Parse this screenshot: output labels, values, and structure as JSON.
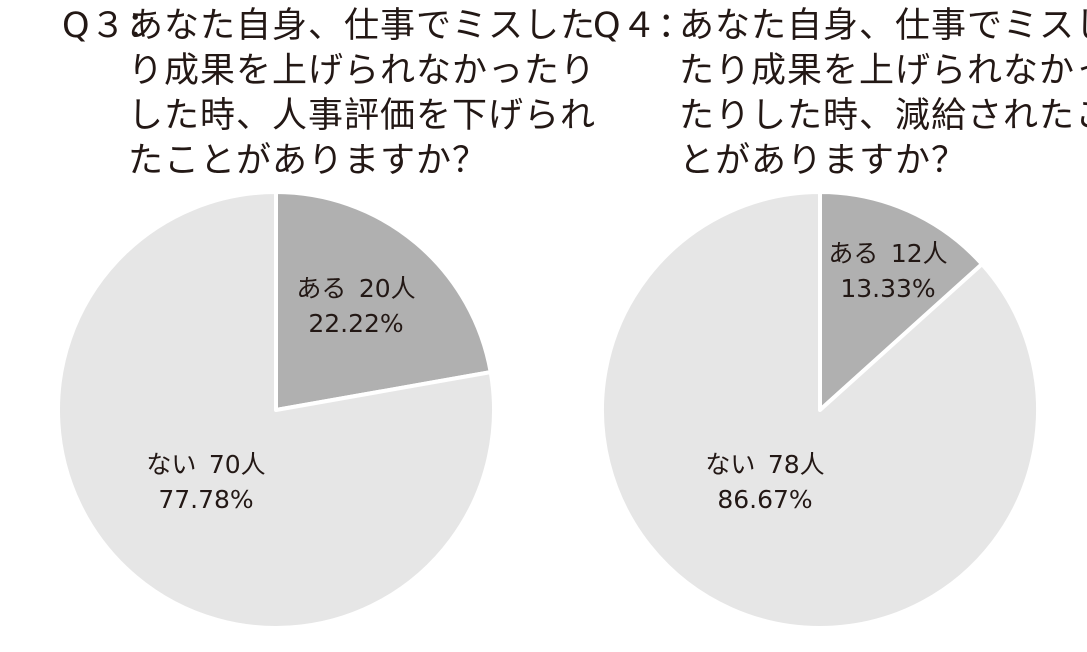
{
  "chart_data": [
    {
      "type": "pie",
      "question_number": "Q３：",
      "title_lines": [
        "あなた自身、仕事でミスした",
        "り成果を上げられなかったり",
        "した時、人事評価を下げられ",
        "たことがありますか？"
      ],
      "slices": [
        {
          "label": "ある",
          "count_text": "20人",
          "count": 20,
          "percent_text": "22.22%",
          "percent": 22.22,
          "color": "#b0b0b0"
        },
        {
          "label": "ない",
          "count_text": "70人",
          "count": 70,
          "percent_text": "77.78%",
          "percent": 77.78,
          "color": "#e6e6e6"
        }
      ]
    },
    {
      "type": "pie",
      "question_number": "Q４：",
      "title_lines": [
        "あなた自身、仕事でミスし",
        "たり成果を上げられなかっ",
        "たりした時、減給されたこ",
        "とがありますか？"
      ],
      "slices": [
        {
          "label": "ある",
          "count_text": "12人",
          "count": 12,
          "percent_text": "13.33%",
          "percent": 13.33,
          "color": "#b0b0b0"
        },
        {
          "label": "ない",
          "count_text": "78人",
          "count": 78,
          "percent_text": "86.67%",
          "percent": 86.67,
          "color": "#e6e6e6"
        }
      ]
    }
  ]
}
